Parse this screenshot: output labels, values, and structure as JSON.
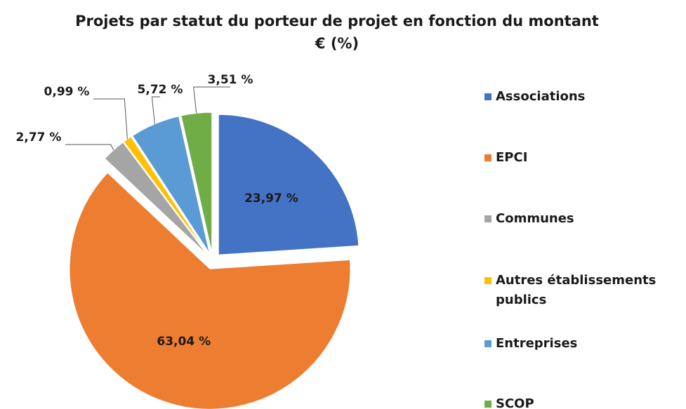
{
  "chart_data": {
    "type": "pie",
    "title": "Projets par statut du porteur de projet en fonction du montant € (%)",
    "categories": [
      "Associations",
      "EPCI",
      "Communes",
      "Autres établissements publics",
      "Entreprises",
      "SCOP"
    ],
    "values": [
      23.97,
      63.04,
      2.77,
      0.99,
      5.72,
      3.51
    ],
    "value_labels": [
      "23,97 %",
      "63,04 %",
      "2,77 %",
      "0,99 %",
      "5,72 %",
      "3,51 %"
    ],
    "colors": [
      "#4472c4",
      "#ed7d31",
      "#a5a5a5",
      "#ffc000",
      "#5b9bd5",
      "#70ad47"
    ],
    "legend": "right"
  }
}
